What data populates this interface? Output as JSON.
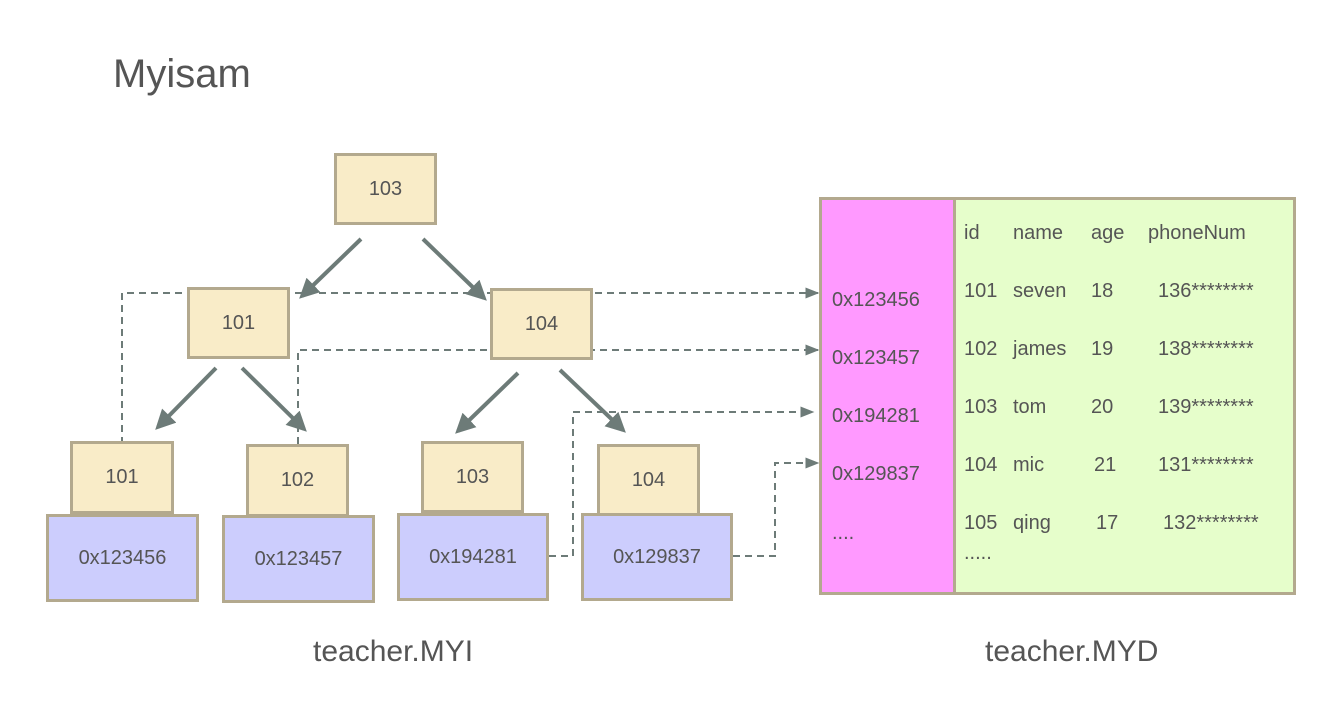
{
  "title": "Myisam",
  "index": {
    "caption": "teacher.MYI",
    "root": "103",
    "level2": [
      "101",
      "104"
    ],
    "leaves": [
      {
        "key": "101",
        "addr": "0x123456"
      },
      {
        "key": "102",
        "addr": "0x123457"
      },
      {
        "key": "103",
        "addr": "0x194281"
      },
      {
        "key": "104",
        "addr": "0x129837"
      }
    ]
  },
  "data_file": {
    "caption": "teacher.MYD",
    "addresses": [
      "0x123456",
      "0x123457",
      "0x194281",
      "0x129837",
      "...."
    ],
    "header": [
      "id",
      "name",
      "age",
      "phoneNum"
    ],
    "rows": [
      [
        "101",
        "seven",
        "18",
        "136********"
      ],
      [
        "102",
        "james",
        "19",
        "138********"
      ],
      [
        "103",
        "tom",
        "20",
        "139********"
      ],
      [
        "104",
        "mic",
        "21",
        "131********"
      ],
      [
        "105",
        "qing",
        "17",
        "132********"
      ]
    ],
    "more": "....."
  },
  "colors": {
    "key_node": "#f9ecc8",
    "pointer_node": "#cccdfd",
    "address_column": "#ff99ff",
    "data_area": "#e6fecb",
    "border": "#b3a98e",
    "arrow": "#6d7b78"
  }
}
